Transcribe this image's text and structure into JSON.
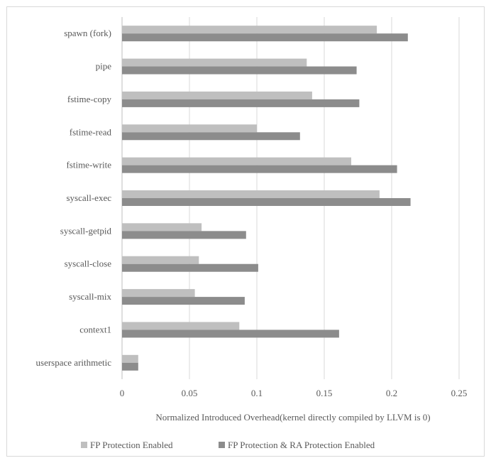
{
  "chart_data": {
    "type": "bar",
    "orientation": "horizontal",
    "categories": [
      "spawn (fork)",
      "pipe",
      "fstime-copy",
      "fstime-read",
      "fstime-write",
      "syscall-exec",
      "syscall-getpid",
      "syscall-close",
      "syscall-mix",
      "context1",
      "userspace arithmetic"
    ],
    "series": [
      {
        "name": "FP Protection Enabled",
        "color": "#bfbfbf",
        "values": [
          0.189,
          0.137,
          0.141,
          0.1,
          0.17,
          0.191,
          0.059,
          0.057,
          0.054,
          0.087,
          0.012
        ]
      },
      {
        "name": "FP Protection & RA Protection Enabled",
        "color": "#8c8c8c",
        "values": [
          0.212,
          0.174,
          0.176,
          0.132,
          0.204,
          0.214,
          0.092,
          0.101,
          0.091,
          0.161,
          0.012
        ]
      }
    ],
    "xlabel": "Normalized Introduced Overhead(kernel directly compiled by LLVM is 0)",
    "ylabel": "",
    "xlim": [
      0,
      0.25
    ],
    "xticks": [
      "0",
      "0.05",
      "0.1",
      "0.15",
      "0.2",
      "0.25"
    ],
    "grid": "vertical",
    "legend": "bottom"
  }
}
